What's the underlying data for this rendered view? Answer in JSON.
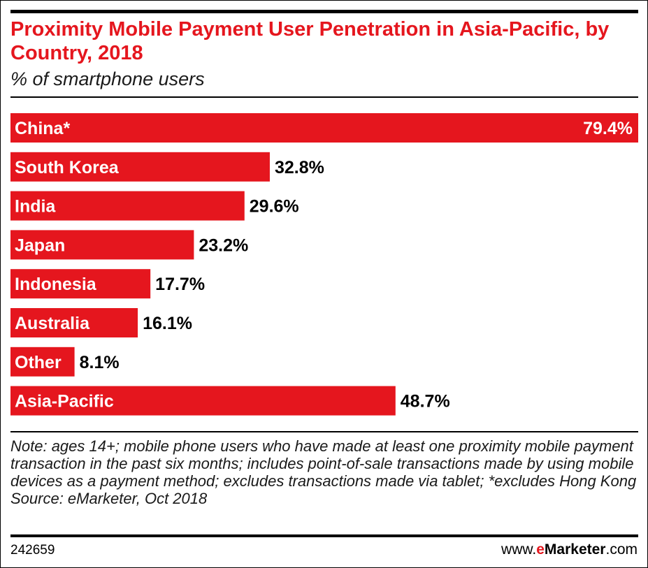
{
  "chart_data": {
    "type": "bar",
    "orientation": "horizontal",
    "title": "Proximity Mobile Payment User Penetration in Asia-Pacific, by Country, 2018",
    "subtitle": "% of smartphone users",
    "categories": [
      "China*",
      "South Korea",
      "India",
      "Japan",
      "Indonesia",
      "Australia",
      "Other",
      "Asia-Pacific"
    ],
    "values": [
      79.4,
      32.8,
      29.6,
      23.2,
      17.7,
      16.1,
      8.1,
      48.7
    ],
    "value_labels": [
      "79.4%",
      "32.8%",
      "29.6%",
      "23.2%",
      "17.7%",
      "16.1%",
      "8.1%",
      "48.7%"
    ],
    "xlim": [
      0,
      79.4
    ],
    "unit": "%",
    "grid": false,
    "legend": "none"
  },
  "colors": {
    "bar": "#e5161e",
    "title": "#e5161e",
    "value_inside": "#ffffff",
    "value_outside": "#000000"
  },
  "footer": {
    "note": "Note: ages 14+; mobile phone users who have made at least one proximity mobile payment transaction in the past six months; includes point-of-sale transactions made by using mobile devices as a payment method; excludes transactions made via tablet; *excludes Hong Kong",
    "source": "Source: eMarketer, Oct 2018",
    "chart_id": "242659",
    "brand_prefix": "www.",
    "brand_e": "e",
    "brand_name": "Marketer",
    "brand_suffix": ".com"
  }
}
